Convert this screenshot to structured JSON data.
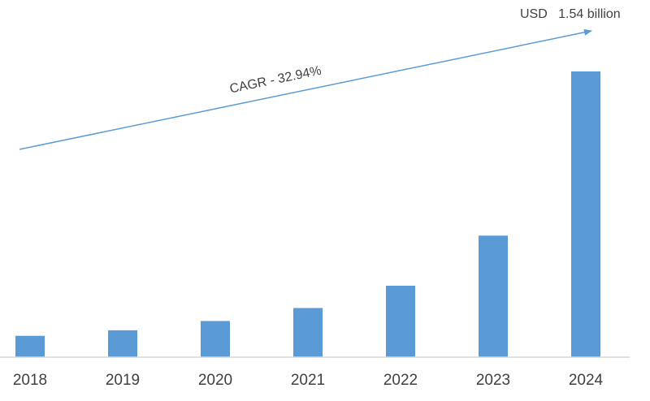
{
  "chart_data": {
    "type": "bar",
    "categories": [
      "2018",
      "2019",
      "2020",
      "2021",
      "2022",
      "2023",
      "2024"
    ],
    "values": [
      0.115,
      0.145,
      0.195,
      0.265,
      0.385,
      0.655,
      1.54
    ],
    "units": "USD billion",
    "grid": false,
    "legend": "none",
    "bar_color": "#5b9bd5",
    "arrow_color": "#5b9bd5",
    "axis_color": "#d9d9d9",
    "text_color": "#404040",
    "annotations": {
      "cagr": "CAGR - 32.94%",
      "end_value": "USD   1.54 billion"
    }
  }
}
